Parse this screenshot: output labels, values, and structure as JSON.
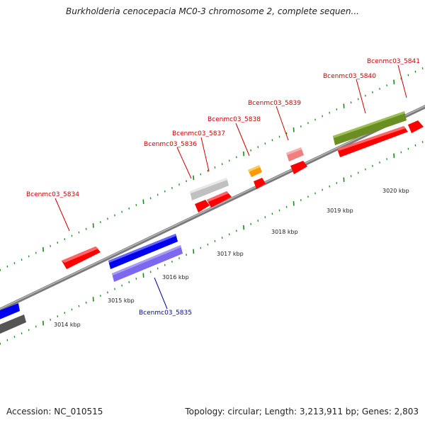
{
  "title": "Burkholderia cenocepacia MC0-3 chromosome 2, complete sequen...",
  "footer": {
    "accession": "Accession: NC_010515",
    "summary": "Topology: circular; Length: 3,213,911 bp; Genes: 2,803"
  },
  "scale_labels": [
    "3014 kbp",
    "3015 kbp",
    "3016 kbp",
    "3017 kbp",
    "3018 kbp",
    "3019 kbp",
    "3020 kbp"
  ],
  "genes": [
    {
      "name": "Bcenmc03_5834",
      "color": "#ff0000"
    },
    {
      "name": "Bcenmc03_5835",
      "color": "#0000ee"
    },
    {
      "name": "Bcenmc03_5836",
      "color": "#c8c8c8"
    },
    {
      "name": "Bcenmc03_5837",
      "color": "#ff0000"
    },
    {
      "name": "Bcenmc03_5838",
      "color": "#ff9900"
    },
    {
      "name": "Bcenmc03_5839",
      "color": "#f08080"
    },
    {
      "name": "Bcenmc03_5840",
      "color": "#6b8e23"
    },
    {
      "name": "Bcenmc03_5841",
      "color": "#ff0000"
    }
  ],
  "colors": {
    "backbone": "#8a8a8a",
    "tick": "#1a8a1a",
    "label_red": "#cc0000",
    "label_blue": "#0000aa",
    "feature_blue": "#0000ee",
    "feature_purple": "#7b68ee",
    "feature_gray": "#555555"
  }
}
